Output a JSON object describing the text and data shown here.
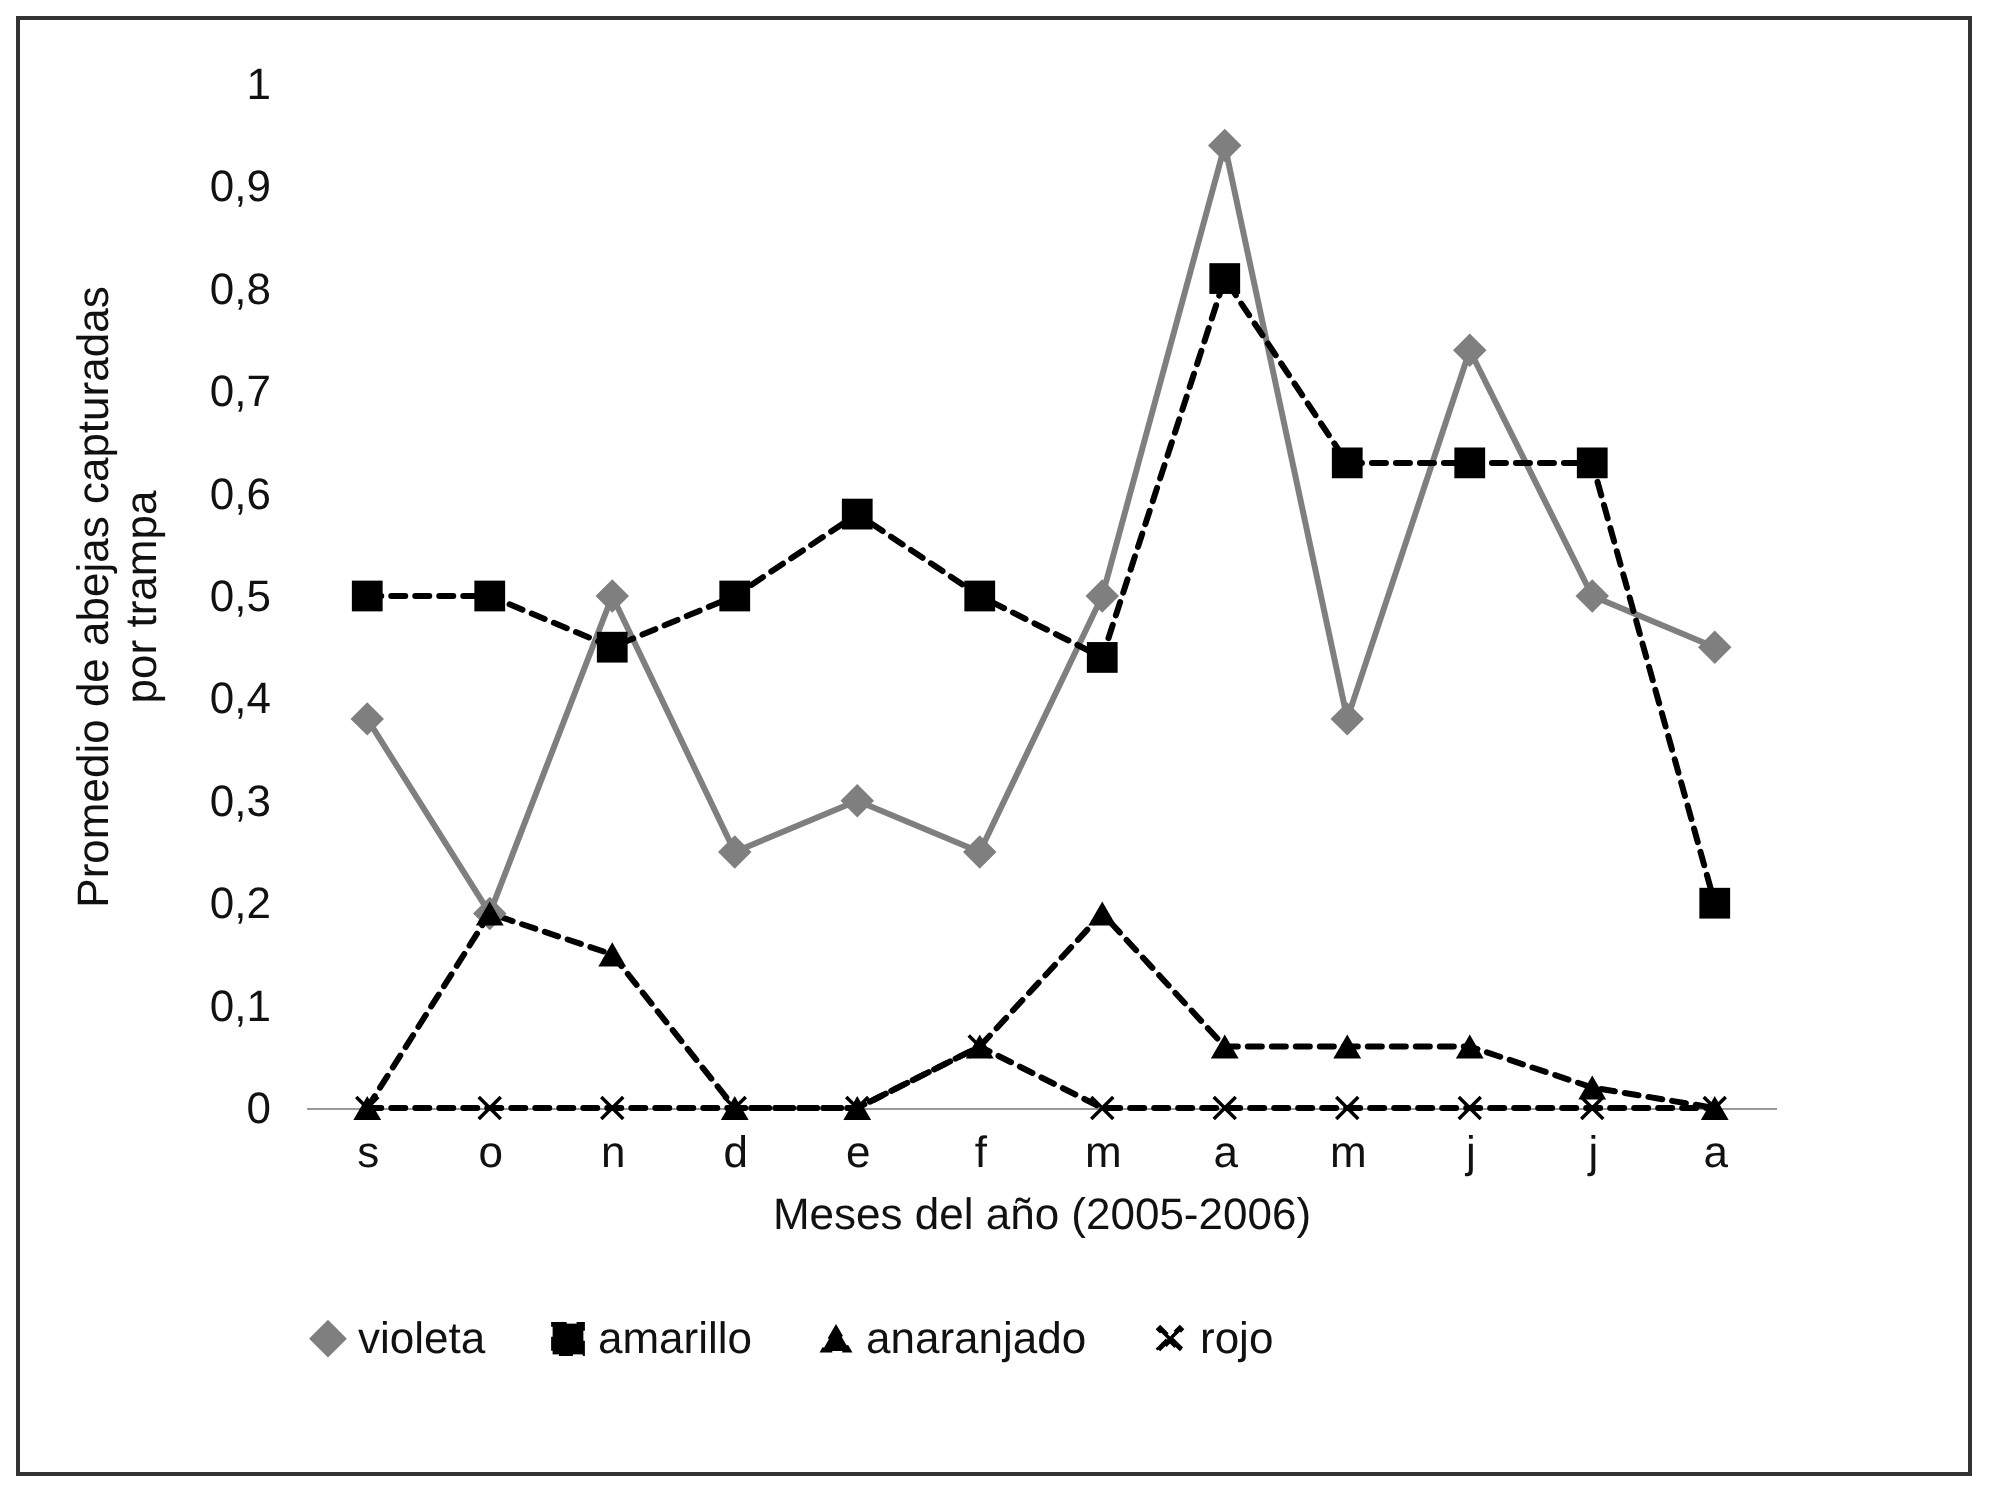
{
  "chart_data": {
    "type": "line",
    "xlabel": "Meses del año (2005-2006)",
    "ylabel": "Promedio de abejas capturadas por trampa",
    "categories": [
      "s",
      "o",
      "n",
      "d",
      "e",
      "f",
      "m",
      "a",
      "m",
      "j",
      "j",
      "a"
    ],
    "series": [
      {
        "name": "violeta",
        "color": "#7f7f7f",
        "marker": "diamond",
        "line_style": "solid",
        "values": [
          0.38,
          0.19,
          0.5,
          0.25,
          0.3,
          0.25,
          0.5,
          0.94,
          0.38,
          0.74,
          0.5,
          0.45
        ]
      },
      {
        "name": "amarillo",
        "color": "#000000",
        "marker": "square",
        "line_style": "dashed",
        "values": [
          0.5,
          0.5,
          0.45,
          0.5,
          0.58,
          0.5,
          0.44,
          0.81,
          0.63,
          0.63,
          0.63,
          0.2
        ]
      },
      {
        "name": "anaranjado",
        "color": "#000000",
        "marker": "triangle",
        "line_style": "dashed",
        "values": [
          0,
          0.19,
          0.15,
          0,
          0,
          0.06,
          0.19,
          0.06,
          0.06,
          0.06,
          0.02,
          0
        ]
      },
      {
        "name": "rojo",
        "color": "#000000",
        "marker": "cross",
        "line_style": "dashed",
        "values": [
          0,
          0,
          0,
          0,
          0,
          0.06,
          0,
          0,
          0,
          0,
          0,
          0
        ]
      }
    ],
    "ylim": [
      0,
      1
    ],
    "yticks": [
      0,
      {
        "value": 0.1,
        "label": "0,1"
      },
      {
        "value": 0.2,
        "label": "0,2"
      },
      {
        "value": 0.3,
        "label": "0,3"
      },
      {
        "value": 0.4,
        "label": "0,4"
      },
      {
        "value": 0.5,
        "label": "0,5"
      },
      {
        "value": 0.6,
        "label": "0,6"
      },
      {
        "value": 0.7,
        "label": "0,7"
      },
      {
        "value": 0.8,
        "label": "0,8"
      },
      {
        "value": 0.9,
        "label": "0,9"
      },
      1
    ],
    "grid": false,
    "legend": "bottom"
  }
}
